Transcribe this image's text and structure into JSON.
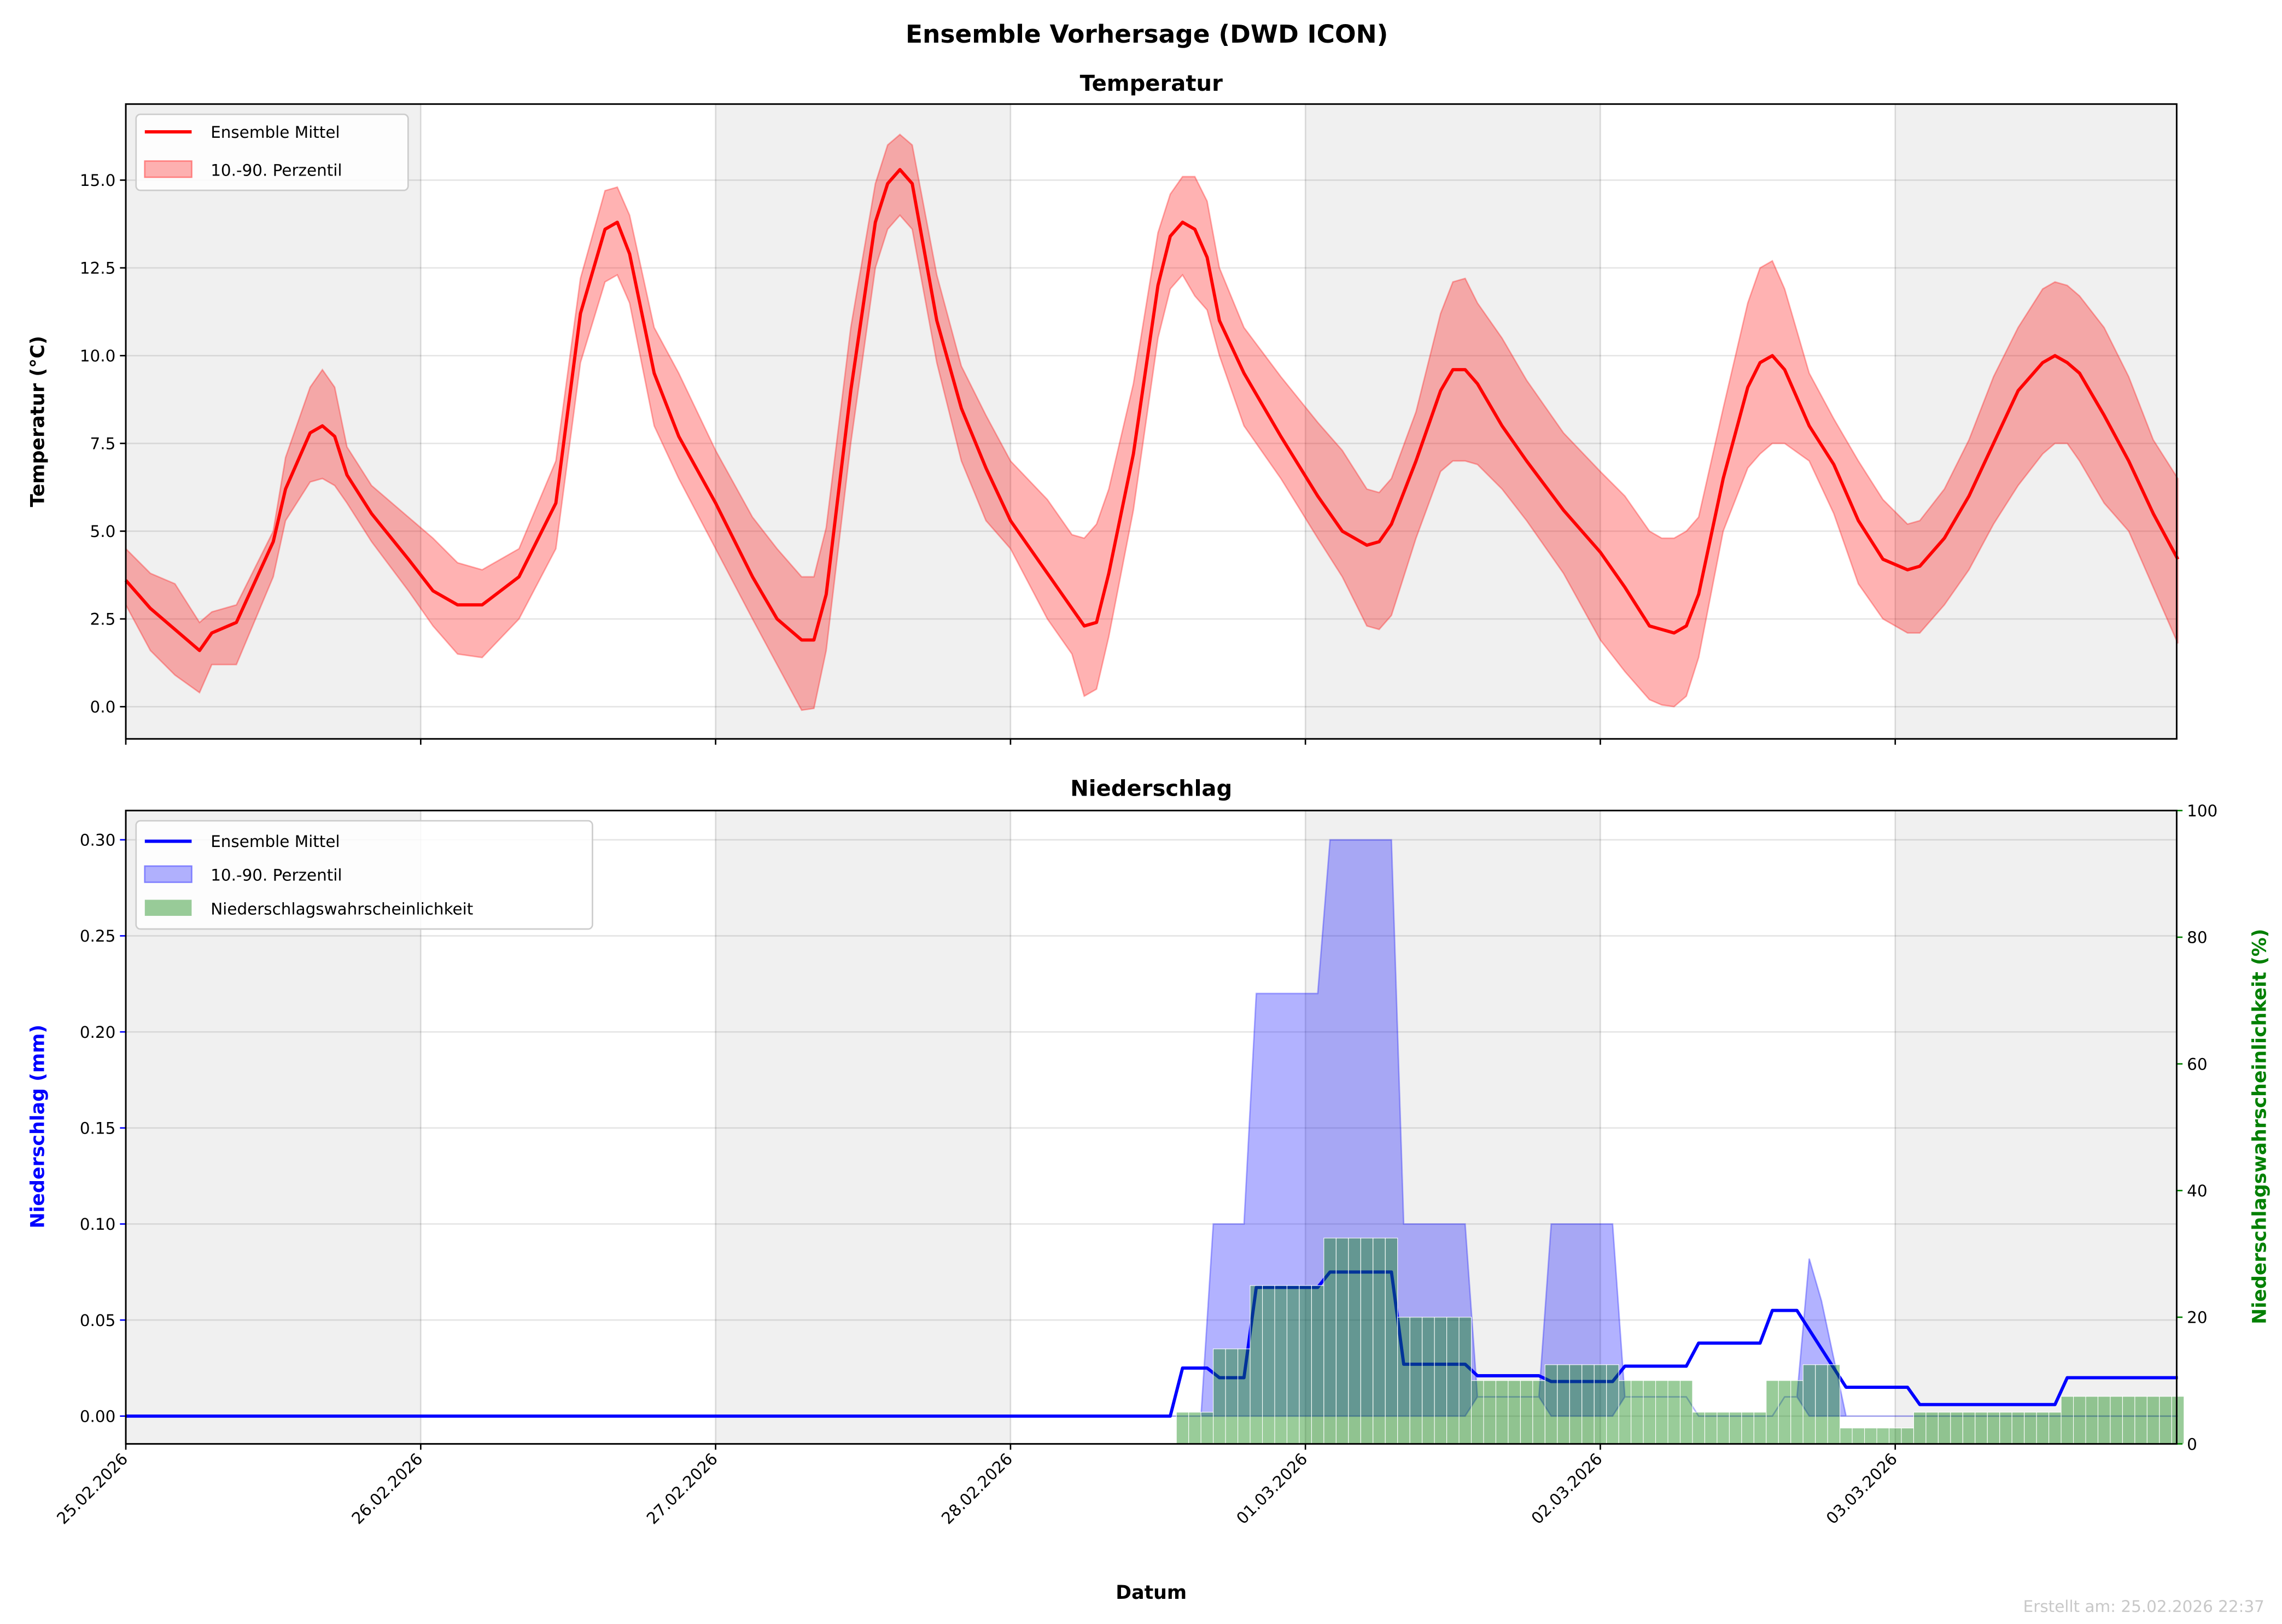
{
  "title": "Ensemble Vorhersage (DWD ICON)",
  "footer": "Erstellt am: 25.02.2026 22:37",
  "chart_data": [
    {
      "type": "line",
      "title": "Temperatur",
      "xlabel": "",
      "ylabel": "Temperatur (°C)",
      "x_unit": "hours since 25.02.2026 00:00",
      "xlim": [
        0,
        167
      ],
      "ylim": [
        -0.9,
        17.2
      ],
      "yticks": [
        "0.0",
        "2.5",
        "5.0",
        "7.5",
        "10.0",
        "12.5",
        "15.0"
      ],
      "ytick_values": [
        0,
        2.5,
        5,
        7.5,
        10,
        12.5,
        15
      ],
      "grid": true,
      "legend": {
        "placement": "top-left",
        "entries": [
          "Ensemble Mittel",
          "10.-90. Perzentil"
        ]
      },
      "colors": {
        "mean": "#ff0000",
        "band": "#ff0000"
      },
      "x": [
        0,
        2,
        4,
        6,
        7,
        9,
        12,
        13,
        15,
        16,
        17,
        18,
        20,
        23,
        25,
        27,
        29,
        32,
        35,
        37,
        39,
        40,
        41,
        43,
        45,
        48,
        51,
        53,
        55,
        56,
        57,
        59,
        61,
        62,
        63,
        64,
        66,
        68,
        70,
        72,
        75,
        77,
        78,
        79,
        80,
        82,
        84,
        85,
        86,
        87,
        88,
        89,
        91,
        94,
        97,
        99,
        101,
        102,
        103,
        105,
        107,
        108,
        109,
        110,
        112,
        114,
        117,
        120,
        122,
        124,
        125,
        126,
        127,
        128,
        130,
        132,
        133,
        134,
        135,
        137,
        139,
        141,
        143,
        145,
        146,
        148,
        150,
        152,
        154,
        156,
        157,
        158,
        159,
        161,
        163,
        165,
        167
      ],
      "series": [
        {
          "name": "Ensemble Mittel",
          "values": [
            3.6,
            2.8,
            2.2,
            1.6,
            2.1,
            2.4,
            4.7,
            6.2,
            7.8,
            8.0,
            7.7,
            6.6,
            5.5,
            4.2,
            3.3,
            2.9,
            2.9,
            3.7,
            5.8,
            11.2,
            13.6,
            13.8,
            12.9,
            9.5,
            7.7,
            5.8,
            3.7,
            2.5,
            1.9,
            1.9,
            3.2,
            9.0,
            13.8,
            14.9,
            15.3,
            14.9,
            11.0,
            8.5,
            6.8,
            5.3,
            3.8,
            2.8,
            2.3,
            2.4,
            3.8,
            7.2,
            12.0,
            13.4,
            13.8,
            13.6,
            12.8,
            11.0,
            9.5,
            7.7,
            6.0,
            5.0,
            4.6,
            4.7,
            5.2,
            7.0,
            9.0,
            9.6,
            9.6,
            9.2,
            8.0,
            7.0,
            5.6,
            4.4,
            3.4,
            2.3,
            2.2,
            2.1,
            2.3,
            3.2,
            6.5,
            9.1,
            9.8,
            10.0,
            9.6,
            8.0,
            6.9,
            5.3,
            4.2,
            3.9,
            4.0,
            4.8,
            6.0,
            7.5,
            9.0,
            9.8,
            10.0,
            9.8,
            9.5,
            8.3,
            7.0,
            5.5,
            4.2
          ]
        },
        {
          "name": "10. Perzentil",
          "values": [
            2.9,
            1.6,
            0.9,
            0.4,
            1.2,
            1.2,
            3.7,
            5.3,
            6.4,
            6.5,
            6.3,
            5.8,
            4.7,
            3.3,
            2.3,
            1.5,
            1.4,
            2.5,
            4.5,
            9.8,
            12.1,
            12.3,
            11.5,
            8.0,
            6.5,
            4.5,
            2.5,
            1.2,
            -0.1,
            -0.05,
            1.6,
            7.5,
            12.5,
            13.6,
            14.0,
            13.6,
            9.8,
            7.0,
            5.3,
            4.5,
            2.5,
            1.5,
            0.3,
            0.5,
            2.0,
            5.6,
            10.5,
            11.9,
            12.3,
            11.7,
            11.3,
            10.0,
            8.0,
            6.5,
            4.8,
            3.7,
            2.3,
            2.2,
            2.6,
            4.8,
            6.7,
            7.0,
            7.0,
            6.9,
            6.2,
            5.3,
            3.8,
            1.9,
            1.0,
            0.2,
            0.05,
            0.0,
            0.3,
            1.4,
            5.0,
            6.8,
            7.2,
            7.5,
            7.5,
            7.0,
            5.5,
            3.5,
            2.5,
            2.1,
            2.1,
            2.9,
            3.9,
            5.2,
            6.3,
            7.2,
            7.5,
            7.5,
            7.0,
            5.8,
            5.0,
            3.4,
            1.8
          ]
        },
        {
          "name": "90. Perzentil",
          "values": [
            4.5,
            3.8,
            3.5,
            2.4,
            2.7,
            2.9,
            5.0,
            7.1,
            9.1,
            9.6,
            9.1,
            7.4,
            6.3,
            5.4,
            4.8,
            4.1,
            3.9,
            4.5,
            7.0,
            12.2,
            14.7,
            14.8,
            14.0,
            10.8,
            9.5,
            7.3,
            5.4,
            4.5,
            3.7,
            3.7,
            5.1,
            10.8,
            14.9,
            16.0,
            16.3,
            16.0,
            12.3,
            9.7,
            8.3,
            7.0,
            5.9,
            4.9,
            4.8,
            5.2,
            6.2,
            9.2,
            13.5,
            14.6,
            15.1,
            15.1,
            14.4,
            12.5,
            10.8,
            9.4,
            8.1,
            7.3,
            6.2,
            6.1,
            6.5,
            8.4,
            11.2,
            12.1,
            12.2,
            11.5,
            10.5,
            9.3,
            7.8,
            6.7,
            6.0,
            5.0,
            4.8,
            4.8,
            5.0,
            5.4,
            8.5,
            11.5,
            12.5,
            12.7,
            11.9,
            9.5,
            8.2,
            7.0,
            5.9,
            5.2,
            5.3,
            6.2,
            7.6,
            9.4,
            10.8,
            11.9,
            12.1,
            12.0,
            11.7,
            10.8,
            9.4,
            7.6,
            6.5
          ]
        }
      ]
    },
    {
      "type": "line",
      "title": "Niederschlag",
      "xlabel": "Datum",
      "ylabel": "Niederschlag (mm)",
      "ylabel_right": "Niederschlagswahrscheinlichkeit (%)",
      "x_unit": "hours since 25.02.2026 00:00",
      "xlim": [
        0,
        167
      ],
      "ylim": [
        -0.0145,
        0.315
      ],
      "ylim_right": [
        0,
        100
      ],
      "yticks": [
        "0.00",
        "0.05",
        "0.10",
        "0.15",
        "0.20",
        "0.25",
        "0.30"
      ],
      "ytick_values": [
        0,
        0.05,
        0.1,
        0.15,
        0.2,
        0.25,
        0.3
      ],
      "yticks_right": [
        "0",
        "20",
        "40",
        "60",
        "80",
        "100"
      ],
      "ytick_right_values": [
        0,
        20,
        40,
        60,
        80,
        100
      ],
      "xticks": [
        "25.02.2026",
        "26.02.2026",
        "27.02.2026",
        "28.02.2026",
        "01.03.2026",
        "02.03.2026",
        "03.03.2026"
      ],
      "grid": true,
      "legend": {
        "placement": "top-left",
        "entries": [
          "Ensemble Mittel",
          "10.-90. Perzentil",
          "Niederschlagswahrscheinlichkeit"
        ]
      },
      "colors": {
        "mean": "#0000ff",
        "band": "#0000ff",
        "bars": "#008000",
        "left_axis": "#0000ff",
        "right_axis": "#008000"
      },
      "mean_points": [
        [
          0,
          0
        ],
        [
          85,
          0
        ],
        [
          86,
          0.025
        ],
        [
          88,
          0.025
        ],
        [
          89,
          0.02
        ],
        [
          91,
          0.02
        ],
        [
          92,
          0.067
        ],
        [
          97,
          0.067
        ],
        [
          98,
          0.075
        ],
        [
          103,
          0.075
        ],
        [
          104,
          0.027
        ],
        [
          109,
          0.027
        ],
        [
          110,
          0.021
        ],
        [
          115,
          0.021
        ],
        [
          116,
          0.018
        ],
        [
          121,
          0.018
        ],
        [
          122,
          0.026
        ],
        [
          127,
          0.026
        ],
        [
          128,
          0.038
        ],
        [
          133,
          0.038
        ],
        [
          134,
          0.055
        ],
        [
          136,
          0.055
        ],
        [
          140,
          0.015
        ],
        [
          145,
          0.015
        ],
        [
          146,
          0.006
        ],
        [
          157,
          0.006
        ],
        [
          158,
          0.02
        ],
        [
          167,
          0.02
        ]
      ],
      "p90_points": [
        [
          0,
          0
        ],
        [
          87.5,
          0
        ],
        [
          88.5,
          0.1
        ],
        [
          91,
          0.1
        ],
        [
          92,
          0.22
        ],
        [
          97,
          0.22
        ],
        [
          98,
          0.3
        ],
        [
          103,
          0.3
        ],
        [
          104,
          0.1
        ],
        [
          109,
          0.1
        ],
        [
          110,
          0.01
        ],
        [
          115,
          0.01
        ],
        [
          116,
          0.1
        ],
        [
          121,
          0.1
        ],
        [
          122,
          0.01
        ],
        [
          127,
          0.01
        ],
        [
          128,
          0
        ],
        [
          134,
          0
        ],
        [
          135,
          0.01
        ],
        [
          136,
          0.01
        ],
        [
          137,
          0.082
        ],
        [
          138,
          0.06
        ],
        [
          140,
          0
        ],
        [
          167,
          0
        ]
      ],
      "p10_points": [
        [
          0,
          0
        ],
        [
          109,
          0
        ],
        [
          110,
          0.01
        ],
        [
          115,
          0.01
        ],
        [
          116,
          0
        ],
        [
          121,
          0
        ],
        [
          122,
          0.01
        ],
        [
          127,
          0.01
        ],
        [
          128,
          0
        ],
        [
          134,
          0
        ],
        [
          135,
          0.01
        ],
        [
          136,
          0.01
        ],
        [
          137,
          0
        ],
        [
          167,
          0
        ]
      ],
      "probability_segments": [
        [
          86,
          88,
          5
        ],
        [
          89,
          91,
          15
        ],
        [
          92,
          97,
          25
        ],
        [
          98,
          103,
          32.5
        ],
        [
          104,
          109,
          20
        ],
        [
          110,
          115,
          10
        ],
        [
          116,
          121,
          12.5
        ],
        [
          122,
          127,
          10
        ],
        [
          128,
          133,
          5
        ],
        [
          134,
          136,
          10
        ],
        [
          137,
          139,
          12.5
        ],
        [
          140,
          145,
          2.5
        ],
        [
          146,
          157,
          5
        ],
        [
          158,
          167,
          7.5
        ]
      ]
    }
  ]
}
